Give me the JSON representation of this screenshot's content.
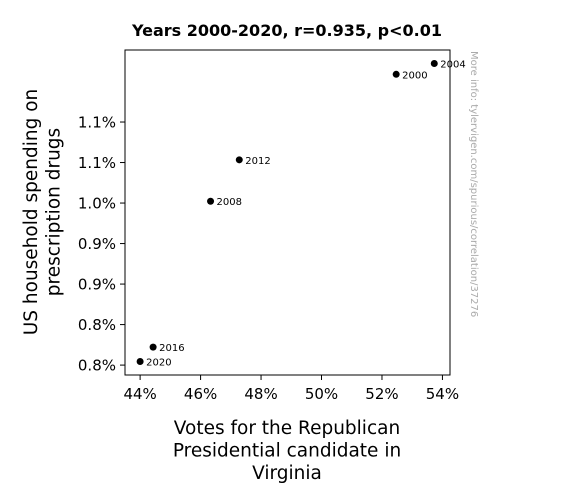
{
  "chart_data": {
    "type": "scatter",
    "title": "Years 2000-2020, r=0.935, p<0.01",
    "xlabel": [
      "Votes for the Republican",
      "Presidential candidate in",
      "Virginia"
    ],
    "ylabel": [
      "US household spending on",
      "prescription drugs"
    ],
    "x_ticks": [
      "44%",
      "46%",
      "48%",
      "50%",
      "52%",
      "54%"
    ],
    "y_ticks": [
      "0.8%",
      "0.8%",
      "0.9%",
      "0.9%",
      "1.0%",
      "1.1%",
      "1.1%"
    ],
    "xlim": [
      43.5,
      54.25
    ],
    "ylim": [
      0.7615,
      1.1225
    ],
    "grid": false,
    "marker_color": "#000000",
    "points": [
      {
        "label": "2000",
        "x": 52.47,
        "y": 1.0955
      },
      {
        "label": "2004",
        "x": 53.73,
        "y": 1.1075
      },
      {
        "label": "2008",
        "x": 46.33,
        "y": 0.9545
      },
      {
        "label": "2012",
        "x": 47.28,
        "y": 1.0005
      },
      {
        "label": "2016",
        "x": 44.43,
        "y": 0.7925
      },
      {
        "label": "2020",
        "x": 44.0,
        "y": 0.7765
      }
    ]
  },
  "watermark": "More info: tylervigen.com/spurious/correlation/37276"
}
